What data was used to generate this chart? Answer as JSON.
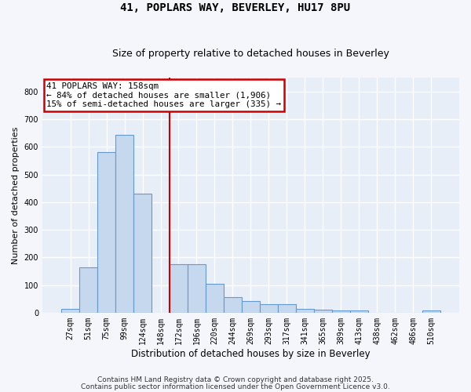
{
  "title": "41, POPLARS WAY, BEVERLEY, HU17 8PU",
  "subtitle": "Size of property relative to detached houses in Beverley",
  "xlabel": "Distribution of detached houses by size in Beverley",
  "ylabel": "Number of detached properties",
  "bar_color": "#c5d8ee",
  "bar_edge_color": "#6699cc",
  "annotation_text": "41 POPLARS WAY: 158sqm\n← 84% of detached houses are smaller (1,906)\n15% of semi-detached houses are larger (335) →",
  "annotation_border_color": "#cc0000",
  "ylim_max": 850,
  "yticks": [
    0,
    100,
    200,
    300,
    400,
    500,
    600,
    700,
    800
  ],
  "bg_color": "#e8eef8",
  "grid_color": "#ffffff",
  "footer1": "Contains HM Land Registry data © Crown copyright and database right 2025.",
  "footer2": "Contains public sector information licensed under the Open Government Licence v3.0.",
  "property_line_color": "#cc0000",
  "categories": [
    "27sqm",
    "51sqm",
    "75sqm",
    "99sqm",
    "124sqm",
    "148sqm",
    "172sqm",
    "196sqm",
    "220sqm",
    "244sqm",
    "269sqm",
    "293sqm",
    "317sqm",
    "341sqm",
    "365sqm",
    "389sqm",
    "413sqm",
    "438sqm",
    "462sqm",
    "486sqm",
    "510sqm"
  ],
  "bar_values": [
    15,
    165,
    580,
    645,
    430,
    0,
    175,
    175,
    105,
    57,
    42,
    30,
    30,
    13,
    10,
    8,
    8,
    0,
    0,
    0,
    7
  ],
  "property_line_index": 5.5,
  "title_fontsize": 10,
  "subtitle_fontsize": 9,
  "tick_fontsize": 7,
  "ylabel_fontsize": 8,
  "xlabel_fontsize": 8.5,
  "annot_fontsize": 7.8,
  "footer_fontsize": 6.5
}
